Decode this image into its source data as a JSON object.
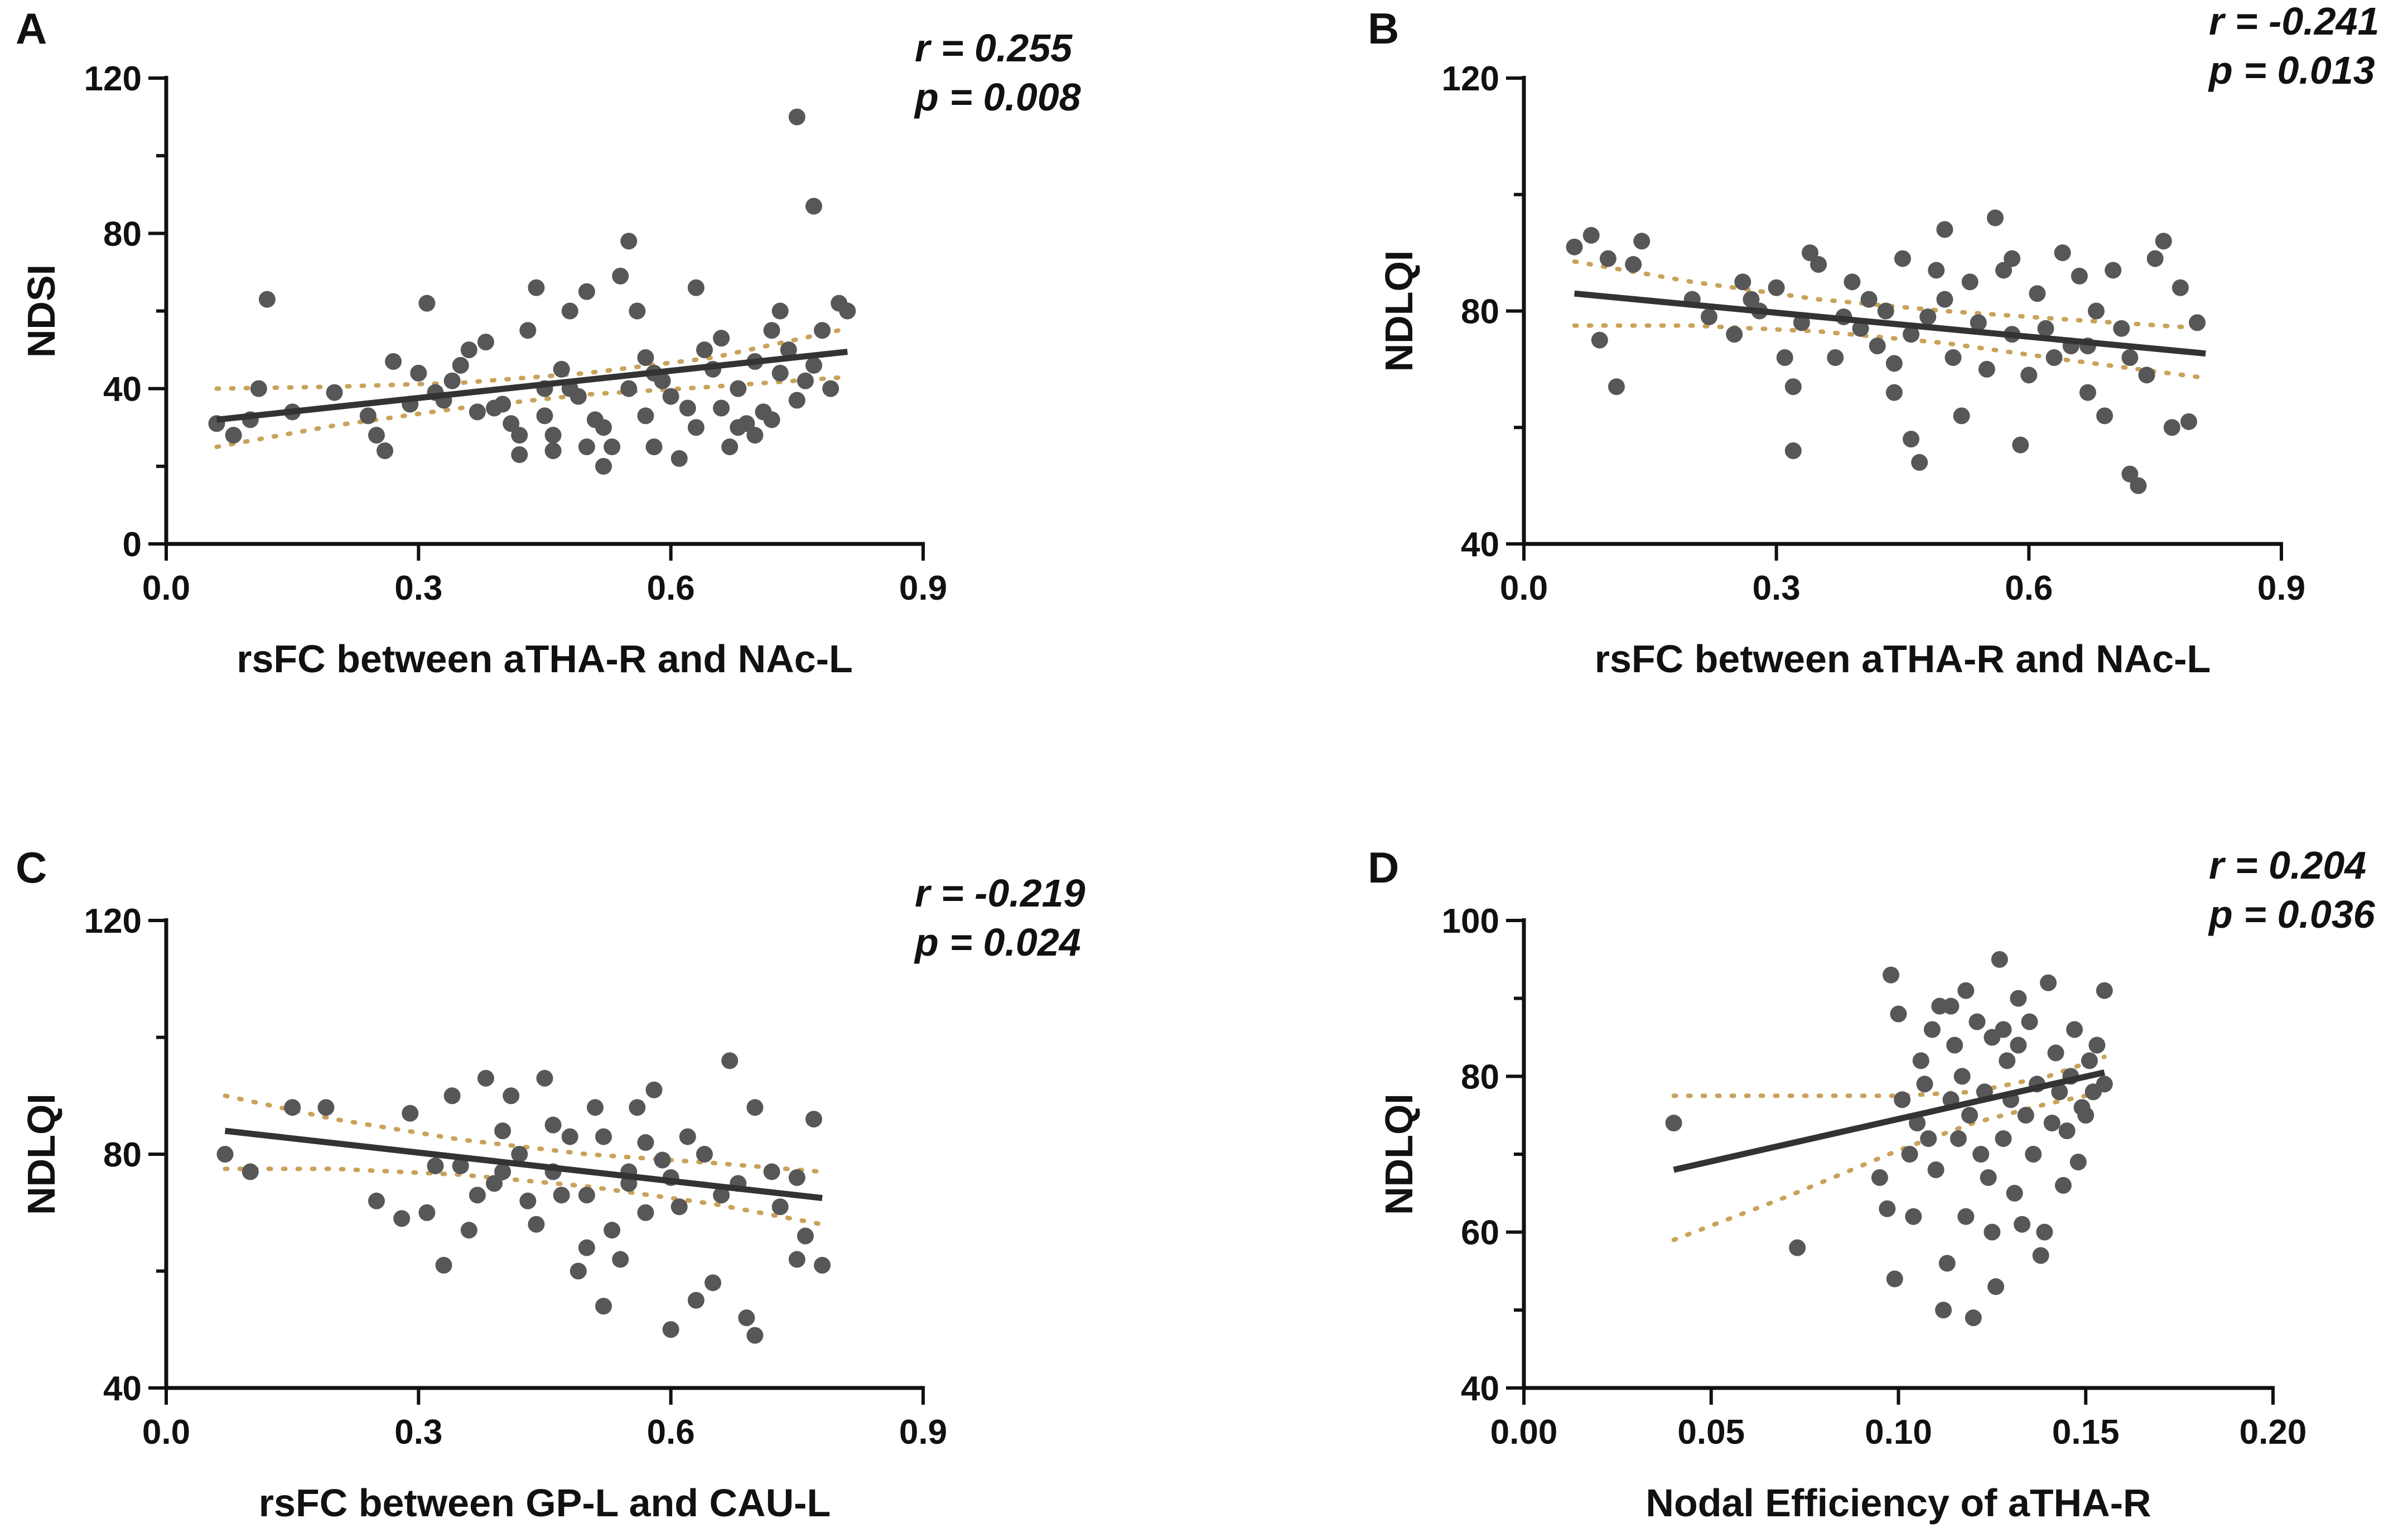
{
  "colors": {
    "point": "#575757",
    "fit": "#333333",
    "ci": "#c9a25a",
    "axis": "#111111"
  },
  "chart_data": [
    {
      "panel": "A",
      "type": "scatter",
      "xlabel": "rsFC between aTHA-R and NAc-L",
      "ylabel": "NDSI",
      "xlim": [
        0,
        0.9
      ],
      "ylim": [
        0,
        120
      ],
      "xticks": [
        0.0,
        0.3,
        0.6,
        0.9
      ],
      "xtick_labels": [
        "0.0",
        "0.3",
        "0.6",
        "0.9"
      ],
      "yticks": [
        0,
        40,
        80,
        120
      ],
      "ytick_labels": [
        "0",
        "40",
        "80",
        "120"
      ],
      "y_minor": [
        20,
        60,
        100
      ],
      "stat_r": "r = 0.255",
      "stat_p": "p = 0.008",
      "fit": {
        "x": [
          0.06,
          0.81
        ],
        "y": [
          32,
          49.5
        ]
      },
      "ci_upper": {
        "x": [
          0.06,
          0.2,
          0.35,
          0.5,
          0.65,
          0.81
        ],
        "y": [
          40,
          40.5,
          41.5,
          44,
          48,
          55.5
        ]
      },
      "ci_lower": {
        "x": [
          0.06,
          0.2,
          0.35,
          0.5,
          0.65,
          0.81
        ],
        "y": [
          25,
          30.5,
          35,
          38.5,
          40.5,
          43
        ]
      },
      "points": [
        [
          0.06,
          31
        ],
        [
          0.08,
          28
        ],
        [
          0.1,
          32
        ],
        [
          0.11,
          40
        ],
        [
          0.12,
          63
        ],
        [
          0.15,
          34
        ],
        [
          0.2,
          39
        ],
        [
          0.24,
          33
        ],
        [
          0.25,
          28
        ],
        [
          0.26,
          24
        ],
        [
          0.27,
          47
        ],
        [
          0.29,
          36
        ],
        [
          0.3,
          44
        ],
        [
          0.31,
          62
        ],
        [
          0.32,
          39
        ],
        [
          0.33,
          37
        ],
        [
          0.34,
          42
        ],
        [
          0.35,
          46
        ],
        [
          0.36,
          50
        ],
        [
          0.37,
          34
        ],
        [
          0.39,
          35
        ],
        [
          0.4,
          36
        ],
        [
          0.41,
          31
        ],
        [
          0.42,
          28
        ],
        [
          0.43,
          55
        ],
        [
          0.44,
          66
        ],
        [
          0.45,
          33
        ],
        [
          0.45,
          40
        ],
        [
          0.46,
          24
        ],
        [
          0.47,
          45
        ],
        [
          0.48,
          60
        ],
        [
          0.49,
          38
        ],
        [
          0.5,
          25
        ],
        [
          0.5,
          65
        ],
        [
          0.51,
          32
        ],
        [
          0.52,
          30
        ],
        [
          0.53,
          25
        ],
        [
          0.54,
          69
        ],
        [
          0.55,
          40
        ],
        [
          0.55,
          78
        ],
        [
          0.56,
          60
        ],
        [
          0.57,
          48
        ],
        [
          0.57,
          33
        ],
        [
          0.58,
          25
        ],
        [
          0.59,
          42
        ],
        [
          0.6,
          38
        ],
        [
          0.61,
          22
        ],
        [
          0.62,
          35
        ],
        [
          0.63,
          30
        ],
        [
          0.63,
          66
        ],
        [
          0.64,
          50
        ],
        [
          0.65,
          45
        ],
        [
          0.66,
          35
        ],
        [
          0.67,
          25
        ],
        [
          0.68,
          40
        ],
        [
          0.69,
          31
        ],
        [
          0.7,
          28
        ],
        [
          0.71,
          34
        ],
        [
          0.72,
          55
        ],
        [
          0.72,
          32
        ],
        [
          0.73,
          44
        ],
        [
          0.73,
          60
        ],
        [
          0.74,
          50
        ],
        [
          0.75,
          37
        ],
        [
          0.75,
          110
        ],
        [
          0.76,
          42
        ],
        [
          0.77,
          46
        ],
        [
          0.77,
          87
        ],
        [
          0.78,
          55
        ],
        [
          0.79,
          40
        ],
        [
          0.8,
          62
        ],
        [
          0.81,
          60
        ],
        [
          0.52,
          20
        ],
        [
          0.46,
          28
        ],
        [
          0.38,
          52
        ],
        [
          0.42,
          23
        ],
        [
          0.48,
          40
        ],
        [
          0.58,
          44
        ],
        [
          0.66,
          53
        ],
        [
          0.68,
          30
        ],
        [
          0.7,
          47
        ]
      ]
    },
    {
      "panel": "B",
      "type": "scatter",
      "xlabel": "rsFC between aTHA-R and NAc-L",
      "ylabel": "NDLQI",
      "xlim": [
        0,
        0.9
      ],
      "ylim": [
        40,
        120
      ],
      "xticks": [
        0.0,
        0.3,
        0.6,
        0.9
      ],
      "xtick_labels": [
        "0.0",
        "0.3",
        "0.6",
        "0.9"
      ],
      "yticks": [
        40,
        80,
        120
      ],
      "ytick_labels": [
        "40",
        "80",
        "120"
      ],
      "y_minor": [
        60,
        100
      ],
      "stat_r": "r = -0.241",
      "stat_p": "p = 0.013",
      "fit": {
        "x": [
          0.06,
          0.81
        ],
        "y": [
          83,
          72.7
        ]
      },
      "ci_upper": {
        "x": [
          0.06,
          0.2,
          0.35,
          0.5,
          0.65,
          0.81
        ],
        "y": [
          88.5,
          85,
          82,
          80,
          78.5,
          77
        ]
      },
      "ci_lower": {
        "x": [
          0.06,
          0.2,
          0.35,
          0.5,
          0.65,
          0.81
        ],
        "y": [
          77.5,
          77.5,
          76.5,
          74.5,
          71.5,
          68.5
        ]
      },
      "points": [
        [
          0.06,
          91
        ],
        [
          0.08,
          93
        ],
        [
          0.09,
          75
        ],
        [
          0.1,
          89
        ],
        [
          0.11,
          67
        ],
        [
          0.13,
          88
        ],
        [
          0.14,
          92
        ],
        [
          0.2,
          82
        ],
        [
          0.22,
          79
        ],
        [
          0.25,
          76
        ],
        [
          0.26,
          85
        ],
        [
          0.27,
          82
        ],
        [
          0.28,
          80
        ],
        [
          0.3,
          84
        ],
        [
          0.31,
          72
        ],
        [
          0.32,
          67
        ],
        [
          0.32,
          56
        ],
        [
          0.33,
          78
        ],
        [
          0.34,
          90
        ],
        [
          0.35,
          88
        ],
        [
          0.37,
          72
        ],
        [
          0.38,
          79
        ],
        [
          0.39,
          85
        ],
        [
          0.4,
          77
        ],
        [
          0.41,
          82
        ],
        [
          0.42,
          74
        ],
        [
          0.43,
          80
        ],
        [
          0.44,
          71
        ],
        [
          0.45,
          89
        ],
        [
          0.46,
          76
        ],
        [
          0.46,
          58
        ],
        [
          0.47,
          54
        ],
        [
          0.48,
          79
        ],
        [
          0.49,
          87
        ],
        [
          0.5,
          82
        ],
        [
          0.5,
          94
        ],
        [
          0.51,
          72
        ],
        [
          0.52,
          62
        ],
        [
          0.53,
          85
        ],
        [
          0.54,
          78
        ],
        [
          0.55,
          70
        ],
        [
          0.56,
          96
        ],
        [
          0.57,
          87
        ],
        [
          0.58,
          76
        ],
        [
          0.59,
          57
        ],
        [
          0.6,
          69
        ],
        [
          0.61,
          83
        ],
        [
          0.62,
          77
        ],
        [
          0.63,
          72
        ],
        [
          0.64,
          90
        ],
        [
          0.65,
          74
        ],
        [
          0.66,
          86
        ],
        [
          0.67,
          66
        ],
        [
          0.68,
          80
        ],
        [
          0.69,
          62
        ],
        [
          0.7,
          87
        ],
        [
          0.71,
          77
        ],
        [
          0.72,
          72
        ],
        [
          0.72,
          52
        ],
        [
          0.73,
          50
        ],
        [
          0.74,
          69
        ],
        [
          0.75,
          89
        ],
        [
          0.76,
          92
        ],
        [
          0.77,
          60
        ],
        [
          0.78,
          84
        ],
        [
          0.79,
          61
        ],
        [
          0.8,
          78
        ],
        [
          0.67,
          74
        ],
        [
          0.58,
          89
        ],
        [
          0.44,
          66
        ]
      ]
    },
    {
      "panel": "C",
      "type": "scatter",
      "xlabel": "rsFC between GP-L and CAU-L",
      "ylabel": "NDLQI",
      "xlim": [
        0,
        0.9
      ],
      "ylim": [
        40,
        120
      ],
      "xticks": [
        0.0,
        0.3,
        0.6,
        0.9
      ],
      "xtick_labels": [
        "0.0",
        "0.3",
        "0.6",
        "0.9"
      ],
      "yticks": [
        40,
        80,
        120
      ],
      "ytick_labels": [
        "40",
        "80",
        "120"
      ],
      "y_minor": [
        60,
        100
      ],
      "stat_r": "r = -0.219",
      "stat_p": "p = 0.024",
      "fit": {
        "x": [
          0.07,
          0.78
        ],
        "y": [
          84,
          72.5
        ]
      },
      "ci_upper": {
        "x": [
          0.07,
          0.2,
          0.35,
          0.5,
          0.65,
          0.78
        ],
        "y": [
          90,
          86,
          82.5,
          80,
          78.5,
          77
        ]
      },
      "ci_lower": {
        "x": [
          0.07,
          0.2,
          0.35,
          0.5,
          0.65,
          0.78
        ],
        "y": [
          77.5,
          77.5,
          76.5,
          74.5,
          71.5,
          68
        ]
      },
      "points": [
        [
          0.07,
          80
        ],
        [
          0.1,
          77
        ],
        [
          0.15,
          88
        ],
        [
          0.19,
          88
        ],
        [
          0.25,
          72
        ],
        [
          0.28,
          69
        ],
        [
          0.29,
          87
        ],
        [
          0.31,
          70
        ],
        [
          0.32,
          78
        ],
        [
          0.33,
          61
        ],
        [
          0.34,
          90
        ],
        [
          0.35,
          78
        ],
        [
          0.36,
          67
        ],
        [
          0.37,
          73
        ],
        [
          0.38,
          93
        ],
        [
          0.39,
          75
        ],
        [
          0.4,
          84
        ],
        [
          0.41,
          90
        ],
        [
          0.42,
          80
        ],
        [
          0.43,
          72
        ],
        [
          0.44,
          68
        ],
        [
          0.45,
          93
        ],
        [
          0.46,
          77
        ],
        [
          0.47,
          73
        ],
        [
          0.48,
          83
        ],
        [
          0.49,
          60
        ],
        [
          0.5,
          73
        ],
        [
          0.51,
          88
        ],
        [
          0.52,
          83
        ],
        [
          0.52,
          54
        ],
        [
          0.53,
          67
        ],
        [
          0.54,
          62
        ],
        [
          0.55,
          77
        ],
        [
          0.56,
          88
        ],
        [
          0.57,
          82
        ],
        [
          0.57,
          70
        ],
        [
          0.58,
          91
        ],
        [
          0.59,
          79
        ],
        [
          0.6,
          76
        ],
        [
          0.6,
          50
        ],
        [
          0.61,
          71
        ],
        [
          0.62,
          83
        ],
        [
          0.63,
          55
        ],
        [
          0.64,
          80
        ],
        [
          0.65,
          58
        ],
        [
          0.66,
          73
        ],
        [
          0.67,
          96
        ],
        [
          0.68,
          75
        ],
        [
          0.69,
          52
        ],
        [
          0.7,
          88
        ],
        [
          0.7,
          49
        ],
        [
          0.72,
          77
        ],
        [
          0.73,
          71
        ],
        [
          0.75,
          76
        ],
        [
          0.75,
          62
        ],
        [
          0.76,
          66
        ],
        [
          0.77,
          86
        ],
        [
          0.78,
          61
        ],
        [
          0.4,
          77
        ],
        [
          0.5,
          64
        ],
        [
          0.46,
          85
        ],
        [
          0.55,
          75
        ]
      ]
    },
    {
      "panel": "D",
      "type": "scatter",
      "xlabel": "Nodal Efficiency of aTHA-R",
      "ylabel": "NDLQI",
      "xlim": [
        0,
        0.2
      ],
      "ylim": [
        40,
        100
      ],
      "xticks": [
        0.0,
        0.05,
        0.1,
        0.15,
        0.2
      ],
      "xtick_labels": [
        "0.00",
        "0.05",
        "0.10",
        "0.15",
        "0.20"
      ],
      "yticks": [
        40,
        60,
        80,
        100
      ],
      "ytick_labels": [
        "40",
        "60",
        "80",
        "100"
      ],
      "y_minor": [
        50,
        70,
        90
      ],
      "stat_r": "r = 0.204",
      "stat_p": "p = 0.036",
      "fit": {
        "x": [
          0.04,
          0.155
        ],
        "y": [
          68,
          80.5
        ]
      },
      "ci_upper": {
        "x": [
          0.04,
          0.07,
          0.1,
          0.12,
          0.14,
          0.155
        ],
        "y": [
          77.5,
          77.5,
          77.5,
          78,
          80,
          82.5
        ]
      },
      "ci_lower": {
        "x": [
          0.04,
          0.07,
          0.1,
          0.12,
          0.14,
          0.155
        ],
        "y": [
          59,
          64.5,
          70.5,
          74,
          76.5,
          78
        ]
      },
      "points": [
        [
          0.04,
          74
        ],
        [
          0.073,
          58
        ],
        [
          0.095,
          67
        ],
        [
          0.097,
          63
        ],
        [
          0.098,
          93
        ],
        [
          0.099,
          54
        ],
        [
          0.1,
          88
        ],
        [
          0.101,
          77
        ],
        [
          0.103,
          70
        ],
        [
          0.104,
          62
        ],
        [
          0.105,
          74
        ],
        [
          0.106,
          82
        ],
        [
          0.107,
          79
        ],
        [
          0.108,
          72
        ],
        [
          0.109,
          86
        ],
        [
          0.11,
          68
        ],
        [
          0.111,
          89
        ],
        [
          0.112,
          50
        ],
        [
          0.113,
          56
        ],
        [
          0.114,
          77
        ],
        [
          0.115,
          84
        ],
        [
          0.116,
          72
        ],
        [
          0.117,
          80
        ],
        [
          0.118,
          62
        ],
        [
          0.119,
          75
        ],
        [
          0.12,
          49
        ],
        [
          0.121,
          87
        ],
        [
          0.122,
          70
        ],
        [
          0.123,
          78
        ],
        [
          0.124,
          67
        ],
        [
          0.125,
          85
        ],
        [
          0.126,
          53
        ],
        [
          0.127,
          95
        ],
        [
          0.128,
          72
        ],
        [
          0.129,
          82
        ],
        [
          0.13,
          77
        ],
        [
          0.131,
          65
        ],
        [
          0.132,
          90
        ],
        [
          0.133,
          61
        ],
        [
          0.134,
          75
        ],
        [
          0.135,
          87
        ],
        [
          0.136,
          70
        ],
        [
          0.137,
          79
        ],
        [
          0.138,
          57
        ],
        [
          0.139,
          60
        ],
        [
          0.14,
          92
        ],
        [
          0.141,
          74
        ],
        [
          0.142,
          83
        ],
        [
          0.143,
          78
        ],
        [
          0.144,
          66
        ],
        [
          0.145,
          73
        ],
        [
          0.146,
          80
        ],
        [
          0.147,
          86
        ],
        [
          0.148,
          69
        ],
        [
          0.149,
          76
        ],
        [
          0.15,
          75
        ],
        [
          0.151,
          82
        ],
        [
          0.152,
          78
        ],
        [
          0.153,
          84
        ],
        [
          0.155,
          91
        ],
        [
          0.155,
          79
        ],
        [
          0.114,
          89
        ],
        [
          0.118,
          91
        ],
        [
          0.128,
          86
        ],
        [
          0.125,
          60
        ],
        [
          0.132,
          84
        ]
      ]
    }
  ]
}
